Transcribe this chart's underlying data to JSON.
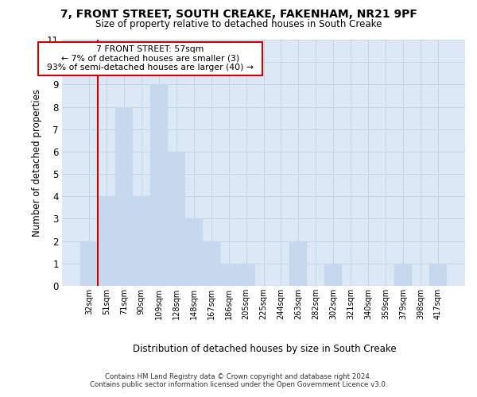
{
  "title1": "7, FRONT STREET, SOUTH CREAKE, FAKENHAM, NR21 9PF",
  "title2": "Size of property relative to detached houses in South Creake",
  "xlabel": "Distribution of detached houses by size in South Creake",
  "ylabel": "Number of detached properties",
  "footer1": "Contains HM Land Registry data © Crown copyright and database right 2024.",
  "footer2": "Contains public sector information licensed under the Open Government Licence v3.0.",
  "annotation_line1": "7 FRONT STREET: 57sqm",
  "annotation_line2": "← 7% of detached houses are smaller (3)",
  "annotation_line3": "93% of semi-detached houses are larger (40) →",
  "bar_color": "#c5d8ed",
  "bar_edge_color": "#c5d8ed",
  "ref_line_color": "#cc0000",
  "categories": [
    "32sqm",
    "51sqm",
    "71sqm",
    "90sqm",
    "109sqm",
    "128sqm",
    "148sqm",
    "167sqm",
    "186sqm",
    "205sqm",
    "225sqm",
    "244sqm",
    "263sqm",
    "282sqm",
    "302sqm",
    "321sqm",
    "340sqm",
    "359sqm",
    "379sqm",
    "398sqm",
    "417sqm"
  ],
  "values": [
    2,
    4,
    8,
    4,
    9,
    6,
    3,
    2,
    1,
    1,
    0,
    0,
    2,
    0,
    1,
    0,
    0,
    0,
    1,
    0,
    1
  ],
  "ylim": [
    0,
    11
  ],
  "background_color": "#ffffff",
  "axes_bg_color": "#dce8f5",
  "grid_color": "#b8cfe0"
}
